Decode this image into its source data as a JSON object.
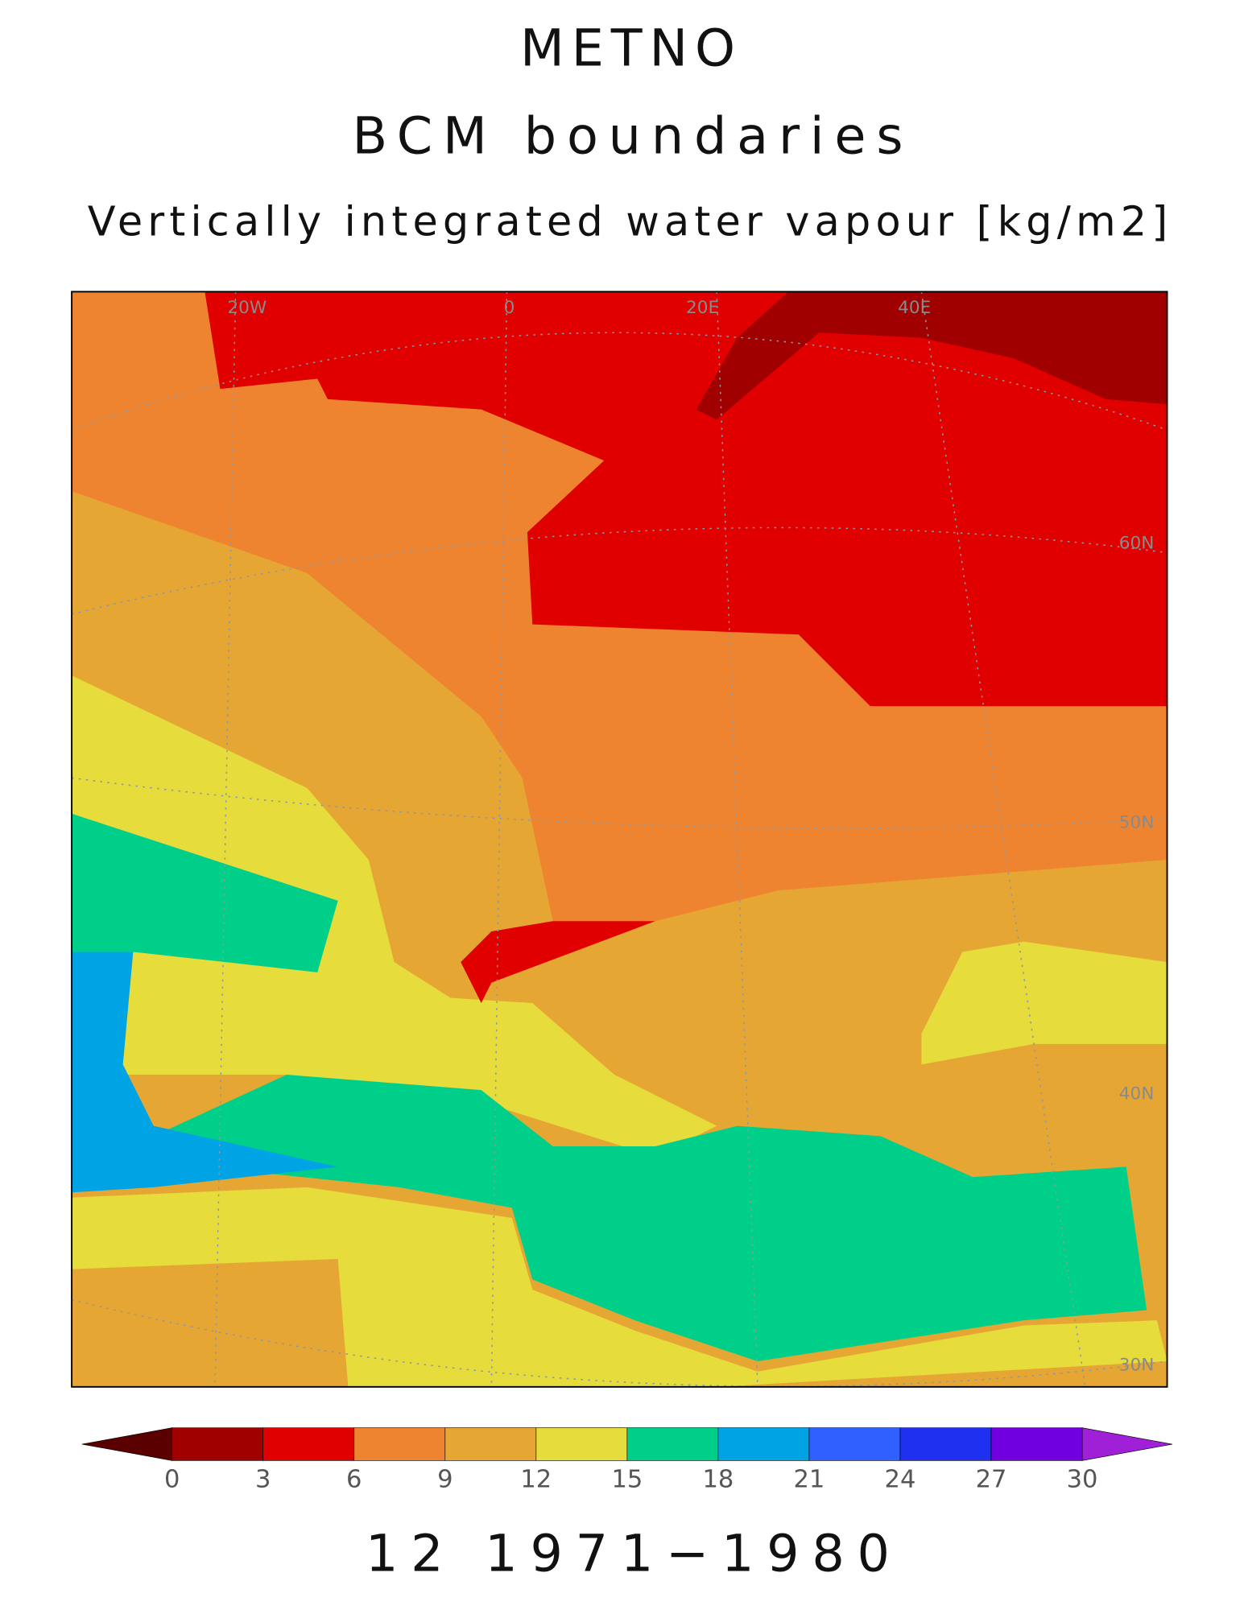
{
  "title": "METNO",
  "subtitle": "BCM boundaries",
  "variable": "Vertically integrated water vapour [kg/m2]",
  "period_label": "12 1971−1980",
  "map": {
    "lon_labels": [
      "20W",
      "0",
      "20E",
      "40E"
    ],
    "lat_labels": [
      "60N",
      "50N",
      "40N",
      "30N"
    ]
  },
  "colorbar": {
    "ticks": [
      0,
      3,
      6,
      9,
      12,
      15,
      18,
      21,
      24,
      27,
      30
    ],
    "colors": [
      "#a00000",
      "#e00000",
      "#ef8430",
      "#e6a634",
      "#e6dc3c",
      "#00cf8a",
      "#00a4e4",
      "#3060ff",
      "#2030f0",
      "#7000e0"
    ],
    "under_color": "#5a0000",
    "over_color": "#a020d8"
  }
}
